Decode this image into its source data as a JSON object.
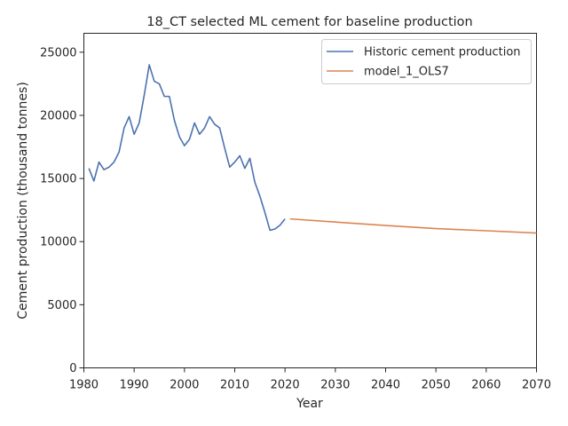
{
  "chart_data": {
    "type": "line",
    "title": "18_CT selected ML cement for baseline production",
    "xlabel": "Year",
    "ylabel": "Cement production (thousand tonnes)",
    "xlim": [
      1980,
      2070
    ],
    "ylim": [
      0,
      26500
    ],
    "x_ticks": [
      1980,
      1990,
      2000,
      2010,
      2020,
      2030,
      2040,
      2050,
      2060,
      2070
    ],
    "y_ticks": [
      0,
      5000,
      10000,
      15000,
      20000,
      25000
    ],
    "grid": false,
    "legend_position": "top-right",
    "series": [
      {
        "name": "Historic cement production",
        "color": "#4c72b0",
        "x": [
          1981,
          1982,
          1983,
          1984,
          1985,
          1986,
          1987,
          1988,
          1989,
          1990,
          1991,
          1992,
          1993,
          1994,
          1995,
          1996,
          1997,
          1998,
          1999,
          2000,
          2001,
          2002,
          2003,
          2004,
          2005,
          2006,
          2007,
          2008,
          2009,
          2010,
          2011,
          2012,
          2013,
          2014,
          2015,
          2016,
          2017,
          2018,
          2019,
          2020
        ],
        "y": [
          15800,
          14800,
          16300,
          15700,
          15900,
          16300,
          17100,
          19000,
          19900,
          18500,
          19400,
          21600,
          24000,
          22700,
          22500,
          21500,
          21500,
          19600,
          18300,
          17600,
          18100,
          19400,
          18500,
          19000,
          19900,
          19300,
          19000,
          17400,
          15900,
          16300,
          16800,
          15800,
          16600,
          14700,
          13600,
          12300,
          10900,
          11000,
          11300,
          11800
        ]
      },
      {
        "name": "model_1_OLS7",
        "color": "#dd8452",
        "x": [
          2021,
          2030,
          2040,
          2050,
          2060,
          2070
        ],
        "y": [
          11800,
          11550,
          11280,
          11030,
          10860,
          10680
        ]
      }
    ]
  }
}
